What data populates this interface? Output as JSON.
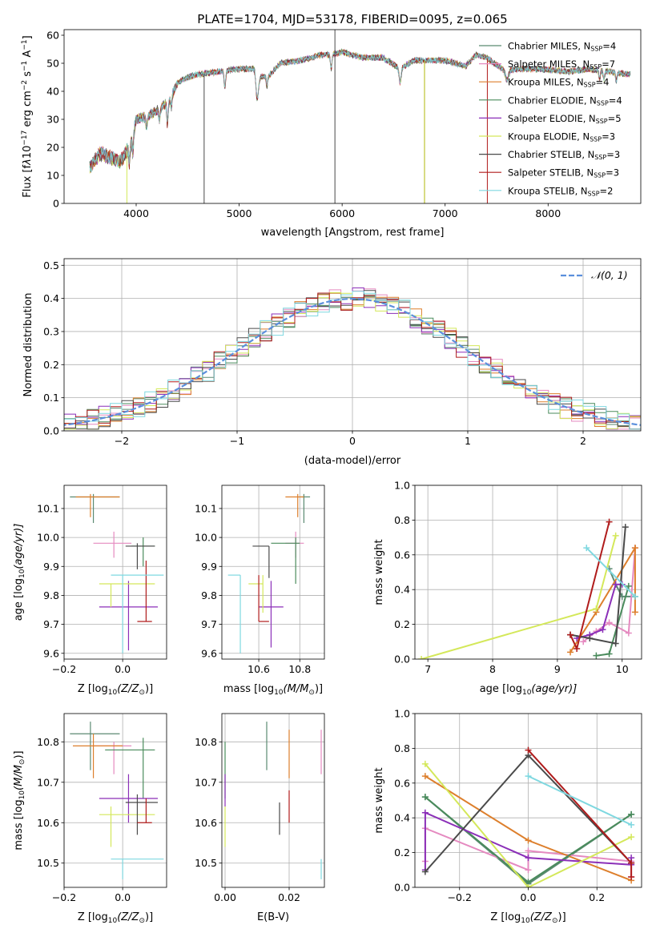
{
  "figure_title": "PLATE=1704, MJD=53178, FIBERID=0095, z=0.065",
  "series": [
    {
      "name": "Chabrier MILES, N",
      "sub": "SSP",
      "tail": "=4",
      "color": "#5b8a72"
    },
    {
      "name": "Salpeter MILES, N",
      "sub": "SSP",
      "tail": "=7",
      "color": "#e58ac0"
    },
    {
      "name": "Kroupa MILES, N",
      "sub": "SSP",
      "tail": "=4",
      "color": "#dd7f2c"
    },
    {
      "name": "Chabrier ELODIE, N",
      "sub": "SSP",
      "tail": "=4",
      "color": "#4a8b5c"
    },
    {
      "name": "Salpeter ELODIE, N",
      "sub": "SSP",
      "tail": "=5",
      "color": "#8b2fb8"
    },
    {
      "name": "Kroupa ELODIE, N",
      "sub": "SSP",
      "tail": "=3",
      "color": "#d4e85a"
    },
    {
      "name": "Chabrier STELIB, N",
      "sub": "SSP",
      "tail": "=3",
      "color": "#4a4a4a"
    },
    {
      "name": "Salpeter STELIB, N",
      "sub": "SSP",
      "tail": "=3",
      "color": "#b01c1c"
    },
    {
      "name": "Kroupa STELIB, N",
      "sub": "SSP",
      "tail": "=2",
      "color": "#7fd8e0"
    }
  ],
  "chart_data": [
    {
      "type": "line",
      "id": "spectrum",
      "xlabel": "wavelength [Angstrom, rest frame]",
      "ylabel": "Flux [f",
      "ylabel_parts": {
        "a": "Flux [f",
        "b": "λ",
        "c": "10",
        "d": "−17",
        "e": " erg cm",
        "f": "−2",
        "g": " s",
        "h": "−1",
        "i": " A",
        "j": "−1",
        "k": "]"
      },
      "xlim": [
        3300,
        8900
      ],
      "ylim": [
        0,
        62
      ],
      "xticks": [
        4000,
        5000,
        6000,
        7000,
        8000
      ],
      "yticks": [
        0,
        10,
        20,
        30,
        40,
        50,
        60
      ],
      "continuum_knots": [
        [
          3550,
          13
        ],
        [
          3650,
          18
        ],
        [
          3780,
          16
        ],
        [
          3850,
          15
        ],
        [
          3900,
          18
        ],
        [
          3960,
          22
        ],
        [
          4000,
          30
        ],
        [
          4100,
          31
        ],
        [
          4200,
          33
        ],
        [
          4300,
          36
        ],
        [
          4350,
          39
        ],
        [
          4400,
          43
        ],
        [
          4500,
          45
        ],
        [
          4600,
          46
        ],
        [
          4800,
          47
        ],
        [
          5000,
          48
        ],
        [
          5150,
          48
        ],
        [
          5200,
          45
        ],
        [
          5300,
          46
        ],
        [
          5400,
          50
        ],
        [
          5600,
          51
        ],
        [
          5800,
          53
        ],
        [
          5900,
          53
        ],
        [
          6000,
          54
        ],
        [
          6200,
          52
        ],
        [
          6400,
          52
        ],
        [
          6560,
          48
        ],
        [
          6700,
          51
        ],
        [
          7000,
          51
        ],
        [
          7200,
          49
        ],
        [
          7300,
          53
        ],
        [
          7400,
          52
        ],
        [
          7600,
          47
        ],
        [
          7700,
          48
        ],
        [
          7900,
          48
        ],
        [
          8200,
          47
        ],
        [
          8400,
          48
        ],
        [
          8600,
          47
        ],
        [
          8800,
          46
        ]
      ],
      "absorption_lines": [
        [
          3934,
          -6,
          25
        ],
        [
          3969,
          -5,
          25
        ],
        [
          4101,
          -4,
          30
        ],
        [
          4227,
          -4,
          30
        ],
        [
          4304,
          -8,
          30
        ],
        [
          4340,
          -4,
          30
        ],
        [
          4861,
          -6,
          30
        ],
        [
          5175,
          -9,
          50
        ],
        [
          5270,
          -4,
          30
        ],
        [
          5894,
          -5,
          30
        ],
        [
          6563,
          -5,
          40
        ],
        [
          7600,
          -3,
          60
        ],
        [
          8500,
          -3,
          30
        ],
        [
          8542,
          -3,
          30
        ],
        [
          8662,
          -3,
          30
        ]
      ],
      "spikes": [
        [
          3910,
          0,
          5
        ],
        [
          4660,
          0,
          5
        ],
        [
          6800,
          0,
          6
        ],
        [
          7410,
          0,
          6
        ],
        [
          5930,
          -14,
          5
        ],
        [
          5930,
          62,
          3
        ]
      ]
    },
    {
      "type": "histogram",
      "id": "residuals",
      "xlabel": "(data-model)/error",
      "ylabel": "Normed distribution",
      "xlim": [
        -2.5,
        2.5
      ],
      "ylim": [
        0,
        0.52
      ],
      "xticks": [
        -2,
        -1,
        0,
        1,
        2
      ],
      "yticks": [
        0.0,
        0.1,
        0.2,
        0.3,
        0.4,
        0.5
      ],
      "reference_label": "𝒩(0, 1)",
      "reference_color": "#5b8fdc",
      "bin_width": 0.1
    },
    {
      "type": "scatter",
      "id": "age_vs_Z",
      "xlabel": "Z [log",
      "xlabel_parts": {
        "a": "Z [log",
        "b": "10",
        "c": "(Z/Z",
        "d": "⊙",
        "e": ")]"
      },
      "ylabel_parts": {
        "a": "age  [log",
        "b": "10",
        "c": "(age/yr)]"
      },
      "xlim": [
        -0.2,
        0.15
      ],
      "ylim": [
        9.58,
        10.18
      ],
      "xticks": [
        -0.2,
        0.0
      ],
      "yticks": [
        9.6,
        9.7,
        9.8,
        9.9,
        10.0,
        10.1
      ],
      "points": [
        {
          "s": 0,
          "x": -0.1,
          "y": 10.14,
          "xl": -0.18,
          "xh": -0.01,
          "yl": 10.05,
          "yh": 10.15
        },
        {
          "s": 1,
          "x": -0.03,
          "y": 9.98,
          "xl": -0.1,
          "xh": 0.03,
          "yl": 9.93,
          "yh": 10.02
        },
        {
          "s": 2,
          "x": -0.11,
          "y": 10.14,
          "xl": -0.16,
          "xh": -0.01,
          "yl": 10.07,
          "yh": 10.15
        },
        {
          "s": 3,
          "x": 0.07,
          "y": 9.97,
          "xl": 0.03,
          "xh": 0.11,
          "yl": 9.9,
          "yh": 10.0
        },
        {
          "s": 4,
          "x": 0.02,
          "y": 9.76,
          "xl": -0.08,
          "xh": 0.12,
          "yl": 9.61,
          "yh": 9.85
        },
        {
          "s": 5,
          "x": -0.04,
          "y": 9.84,
          "xl": -0.08,
          "xh": 0.11,
          "yl": 9.76,
          "yh": 9.84
        },
        {
          "s": 6,
          "x": 0.05,
          "y": 9.97,
          "xl": 0.01,
          "xh": 0.11,
          "yl": 9.89,
          "yh": 9.98
        },
        {
          "s": 7,
          "x": 0.08,
          "y": 9.71,
          "xl": 0.05,
          "xh": 0.1,
          "yl": 9.71,
          "yh": 9.92
        },
        {
          "s": 8,
          "x": 0.0,
          "y": 9.87,
          "xl": -0.04,
          "xh": 0.14,
          "yl": 9.6,
          "yh": 9.87
        }
      ]
    },
    {
      "type": "scatter",
      "id": "age_vs_mass",
      "xlabel_parts": {
        "a": "mass [log",
        "b": "10",
        "c": "(M/M",
        "d": "⊙",
        "e": ")]"
      },
      "xlim": [
        10.42,
        10.92
      ],
      "ylim": [
        9.58,
        10.18
      ],
      "xticks": [
        10.6,
        10.8
      ],
      "yticks": [
        9.6,
        9.7,
        9.8,
        9.9,
        10.0,
        10.1
      ],
      "points": [
        {
          "s": 0,
          "x": 10.82,
          "y": 10.14,
          "xl": 10.8,
          "xh": 10.85,
          "yl": 10.05,
          "yh": 10.15
        },
        {
          "s": 1,
          "x": 10.78,
          "y": 9.98,
          "xl": 10.73,
          "xh": 10.82,
          "yl": 9.93,
          "yh": 10.02
        },
        {
          "s": 2,
          "x": 10.79,
          "y": 10.14,
          "xl": 10.73,
          "xh": 10.82,
          "yl": 10.07,
          "yh": 10.15
        },
        {
          "s": 3,
          "x": 10.78,
          "y": 9.98,
          "xl": 10.66,
          "xh": 10.8,
          "yl": 9.84,
          "yh": 10.0
        },
        {
          "s": 4,
          "x": 10.66,
          "y": 9.76,
          "xl": 10.6,
          "xh": 10.72,
          "yl": 9.62,
          "yh": 9.85
        },
        {
          "s": 5,
          "x": 10.62,
          "y": 9.84,
          "xl": 10.55,
          "xh": 10.62,
          "yl": 9.74,
          "yh": 9.87
        },
        {
          "s": 6,
          "x": 10.65,
          "y": 9.97,
          "xl": 10.57,
          "xh": 10.65,
          "yl": 9.86,
          "yh": 9.97
        },
        {
          "s": 7,
          "x": 10.6,
          "y": 9.71,
          "xl": 10.6,
          "xh": 10.65,
          "yl": 9.71,
          "yh": 9.87
        },
        {
          "s": 8,
          "x": 10.51,
          "y": 9.87,
          "xl": 10.45,
          "xh": 10.51,
          "yl": 9.6,
          "yh": 9.87
        }
      ]
    },
    {
      "type": "line",
      "id": "weight_vs_age",
      "xlabel_parts": {
        "a": "age  [log",
        "b": "10",
        "c": "(age/yr)]"
      },
      "ylabel": "mass weight",
      "xlim": [
        6.8,
        10.3
      ],
      "ylim": [
        0,
        1
      ],
      "xticks": [
        7,
        8,
        9,
        10
      ],
      "yticks": [
        0.0,
        0.2,
        0.4,
        0.6,
        0.8,
        1.0
      ],
      "lines": [
        {
          "s": 0,
          "pts": [
            [
              9.8,
              0.52
            ],
            [
              9.9,
              0.43
            ],
            [
              10.0,
              0.36
            ],
            [
              10.2,
              0.36
            ]
          ]
        },
        {
          "s": 1,
          "pts": [
            [
              9.4,
              0.1
            ],
            [
              9.6,
              0.16
            ],
            [
              9.8,
              0.21
            ],
            [
              10.1,
              0.15
            ],
            [
              10.2,
              0.64
            ]
          ]
        },
        {
          "s": 2,
          "pts": [
            [
              9.2,
              0.04
            ],
            [
              9.6,
              0.27
            ],
            [
              10.2,
              0.64
            ],
            [
              10.2,
              0.27
            ]
          ]
        },
        {
          "s": 3,
          "pts": [
            [
              9.6,
              0.02
            ],
            [
              9.8,
              0.03
            ],
            [
              10.1,
              0.42
            ]
          ]
        },
        {
          "s": 4,
          "pts": [
            [
              9.3,
              0.12
            ],
            [
              9.5,
              0.14
            ],
            [
              9.7,
              0.17
            ],
            [
              9.9,
              0.43
            ],
            [
              10.0,
              0.43
            ]
          ]
        },
        {
          "s": 5,
          "pts": [
            [
              6.9,
              0.0
            ],
            [
              9.6,
              0.29
            ],
            [
              9.9,
              0.71
            ]
          ]
        },
        {
          "s": 6,
          "pts": [
            [
              9.2,
              0.14
            ],
            [
              9.5,
              0.12
            ],
            [
              9.9,
              0.09
            ],
            [
              10.05,
              0.76
            ]
          ]
        },
        {
          "s": 7,
          "pts": [
            [
              9.2,
              0.14
            ],
            [
              9.3,
              0.06
            ],
            [
              9.8,
              0.79
            ]
          ]
        },
        {
          "s": 8,
          "pts": [
            [
              9.45,
              0.64
            ],
            [
              10.2,
              0.36
            ]
          ]
        }
      ]
    },
    {
      "type": "scatter",
      "id": "mass_vs_Z",
      "xlabel_parts": {
        "a": "Z [log",
        "b": "10",
        "c": "(Z/Z",
        "d": "⊙",
        "e": ")]"
      },
      "ylabel_parts": {
        "a": "mass [log",
        "b": "10",
        "c": "(M/M",
        "d": "⊙",
        "e": ")]"
      },
      "xlim": [
        -0.2,
        0.15
      ],
      "ylim": [
        10.44,
        10.87
      ],
      "xticks": [
        -0.2,
        0.0
      ],
      "yticks": [
        10.5,
        10.6,
        10.7,
        10.8
      ],
      "points": [
        {
          "s": 0,
          "x": -0.11,
          "y": 10.82,
          "xl": -0.18,
          "xh": -0.01,
          "yl": 10.73,
          "yh": 10.85
        },
        {
          "s": 1,
          "x": -0.03,
          "y": 10.79,
          "xl": -0.1,
          "xh": 0.03,
          "yl": 10.72,
          "yh": 10.8
        },
        {
          "s": 2,
          "x": -0.1,
          "y": 10.79,
          "xl": -0.17,
          "xh": 0.0,
          "yl": 10.71,
          "yh": 10.82
        },
        {
          "s": 3,
          "x": 0.07,
          "y": 10.78,
          "xl": -0.06,
          "xh": 0.11,
          "yl": 10.66,
          "yh": 10.81
        },
        {
          "s": 4,
          "x": 0.02,
          "y": 10.66,
          "xl": -0.08,
          "xh": 0.12,
          "yl": 10.6,
          "yh": 10.72
        },
        {
          "s": 5,
          "x": -0.04,
          "y": 10.62,
          "xl": -0.08,
          "xh": 0.11,
          "yl": 10.54,
          "yh": 10.64
        },
        {
          "s": 6,
          "x": 0.05,
          "y": 10.65,
          "xl": 0.01,
          "xh": 0.12,
          "yl": 10.57,
          "yh": 10.67
        },
        {
          "s": 7,
          "x": 0.08,
          "y": 10.6,
          "xl": 0.05,
          "xh": 0.1,
          "yl": 10.6,
          "yh": 10.66
        },
        {
          "s": 8,
          "x": 0.0,
          "y": 10.51,
          "xl": -0.04,
          "xh": 0.14,
          "yl": 10.46,
          "yh": 10.51
        }
      ]
    },
    {
      "type": "scatter",
      "id": "mass_vs_ebv",
      "xlabel": "E(B-V)",
      "xlim": [
        -0.001,
        0.031
      ],
      "ylim": [
        10.44,
        10.87
      ],
      "xticks": [
        0.0,
        0.02
      ],
      "yticks": [
        10.5,
        10.6,
        10.7,
        10.8
      ],
      "segments": [
        {
          "s": 0,
          "x": 0.013,
          "yl": 10.73,
          "yh": 10.85
        },
        {
          "s": 1,
          "x": 0.03,
          "yl": 10.72,
          "yh": 10.83
        },
        {
          "s": 2,
          "x": 0.02,
          "yl": 10.71,
          "yh": 10.83
        },
        {
          "s": 3,
          "x": 0.0,
          "yl": 10.66,
          "yh": 10.8
        },
        {
          "s": 4,
          "x": 0.0,
          "yl": 10.64,
          "yh": 10.72
        },
        {
          "s": 5,
          "x": 0.0,
          "yl": 10.54,
          "yh": 10.64
        },
        {
          "s": 6,
          "x": 0.017,
          "yl": 10.57,
          "yh": 10.65
        },
        {
          "s": 7,
          "x": 0.02,
          "yl": 10.6,
          "yh": 10.68
        },
        {
          "s": 8,
          "x": 0.03,
          "yl": 10.46,
          "yh": 10.51
        }
      ]
    },
    {
      "type": "line",
      "id": "weight_vs_Z",
      "xlabel_parts": {
        "a": "Z [log",
        "b": "10",
        "c": "(Z/Z",
        "d": "⊙",
        "e": ")]"
      },
      "ylabel": "mass weight",
      "xlim": [
        -0.33,
        0.33
      ],
      "ylim": [
        0,
        1
      ],
      "xticks": [
        -0.2,
        0.0,
        0.2
      ],
      "yticks": [
        0.0,
        0.2,
        0.4,
        0.6,
        0.8,
        1.0
      ],
      "lines": [
        {
          "s": 0,
          "pts": [
            [
              -0.3,
              0.52
            ],
            [
              0.0,
              0.02
            ],
            [
              0.3,
              0.42
            ]
          ]
        },
        {
          "s": 1,
          "pts": [
            [
              -0.3,
              0.15
            ],
            [
              -0.3,
              0.34
            ],
            [
              0.0,
              0.1
            ],
            [
              0.0,
              0.21
            ],
            [
              0.3,
              0.15
            ],
            [
              0.3,
              0.06
            ]
          ]
        },
        {
          "s": 2,
          "pts": [
            [
              -0.3,
              0.64
            ],
            [
              0.0,
              0.27
            ],
            [
              0.3,
              0.04
            ]
          ]
        },
        {
          "s": 3,
          "pts": [
            [
              -0.3,
              0.52
            ],
            [
              0.0,
              0.03
            ],
            [
              0.3,
              0.42
            ]
          ]
        },
        {
          "s": 4,
          "pts": [
            [
              -0.3,
              0.1
            ],
            [
              -0.3,
              0.43
            ],
            [
              0.0,
              0.17
            ],
            [
              0.3,
              0.13
            ],
            [
              0.3,
              0.17
            ]
          ]
        },
        {
          "s": 5,
          "pts": [
            [
              -0.3,
              0.71
            ],
            [
              0.0,
              0.0
            ],
            [
              0.3,
              0.29
            ]
          ]
        },
        {
          "s": 6,
          "pts": [
            [
              -0.3,
              0.09
            ],
            [
              0.0,
              0.76
            ],
            [
              0.3,
              0.14
            ]
          ]
        },
        {
          "s": 7,
          "pts": [
            [
              0.0,
              0.79
            ],
            [
              0.3,
              0.14
            ],
            [
              0.3,
              0.06
            ]
          ]
        },
        {
          "s": 8,
          "pts": [
            [
              0.0,
              0.64
            ],
            [
              0.3,
              0.36
            ]
          ]
        }
      ]
    }
  ]
}
